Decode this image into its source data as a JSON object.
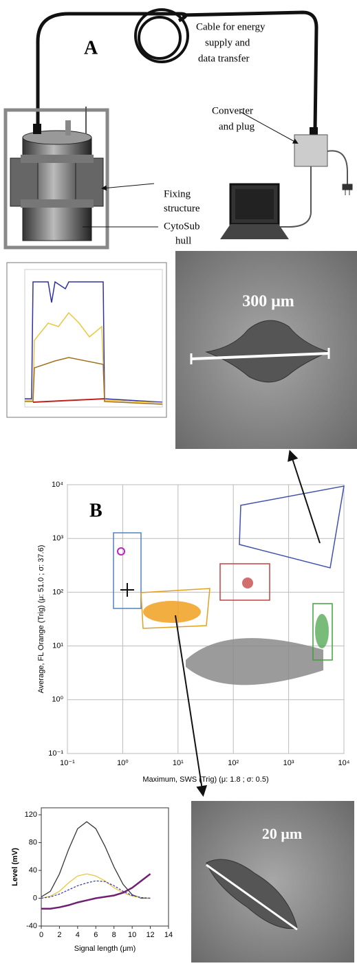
{
  "panel_a": {
    "label": "A",
    "cable_label": [
      "Cable for energy",
      "supply and",
      "data transfer"
    ],
    "converter_label": [
      "Converter",
      "and plug"
    ],
    "fixing_label": [
      "Fixing",
      "structure"
    ],
    "hull_label": [
      "CytoSub",
      "hull"
    ]
  },
  "image_top": {
    "scale_label": "300 μm"
  },
  "panel_b": {
    "label": "B",
    "chart_data": {
      "type": "scatter",
      "x_label": "Maximum, SWS (Trig) (μ: 1.8 ; σ: 0.5)",
      "y_label": "Average, FL Orange (Trig) (μ: 51.0 ; σ: 37.6)",
      "log_scale": true,
      "grid": true,
      "xlim": [
        0.1,
        10000
      ],
      "ylim": [
        0.1,
        10000
      ],
      "xticks": [
        {
          "value": 0.1,
          "label": "10⁻¹"
        },
        {
          "value": 1,
          "label": "10⁰"
        },
        {
          "value": 10,
          "label": "10¹"
        },
        {
          "value": 100,
          "label": "10²"
        },
        {
          "value": 1000,
          "label": "10³"
        },
        {
          "value": 10000,
          "label": "10⁴"
        }
      ],
      "yticks": [
        {
          "value": 0.1,
          "label": "10⁻¹"
        },
        {
          "value": 1,
          "label": "10⁰"
        },
        {
          "value": 10,
          "label": "10¹"
        },
        {
          "value": 100,
          "label": "10²"
        },
        {
          "value": 1000,
          "label": "10³"
        },
        {
          "value": 10000,
          "label": "10⁴"
        }
      ]
    }
  },
  "signal_chart": {
    "chart_data": {
      "type": "line",
      "x_label": "Signal length (μm)",
      "y_label": "Level (mV)",
      "x": [
        0,
        1,
        2,
        3,
        4,
        5,
        6,
        7,
        8,
        9,
        10,
        11,
        12
      ],
      "series": [
        {
          "color": "#333333",
          "values": [
            2,
            10,
            35,
            70,
            100,
            110,
            100,
            75,
            45,
            20,
            5,
            0,
            0
          ]
        },
        {
          "color": "#e8c840",
          "values": [
            0,
            3,
            10,
            22,
            32,
            35,
            32,
            25,
            15,
            8,
            3,
            1,
            0
          ]
        },
        {
          "color": "#4040a0",
          "values": [
            0,
            2,
            6,
            12,
            18,
            22,
            25,
            24,
            18,
            10,
            4,
            1,
            0
          ]
        },
        {
          "color": "#702070",
          "values": [
            -15,
            -15,
            -13,
            -10,
            -6,
            -3,
            0,
            2,
            4,
            8,
            15,
            25,
            35
          ]
        }
      ],
      "xlim": [
        0,
        14
      ],
      "ylim": [
        -40,
        130
      ],
      "xticks": [
        0,
        2,
        4,
        6,
        8,
        10,
        12,
        14
      ],
      "yticks": [
        -40,
        0,
        40,
        80,
        120
      ]
    }
  },
  "image_bottom": {
    "scale_label": "20 μm"
  }
}
